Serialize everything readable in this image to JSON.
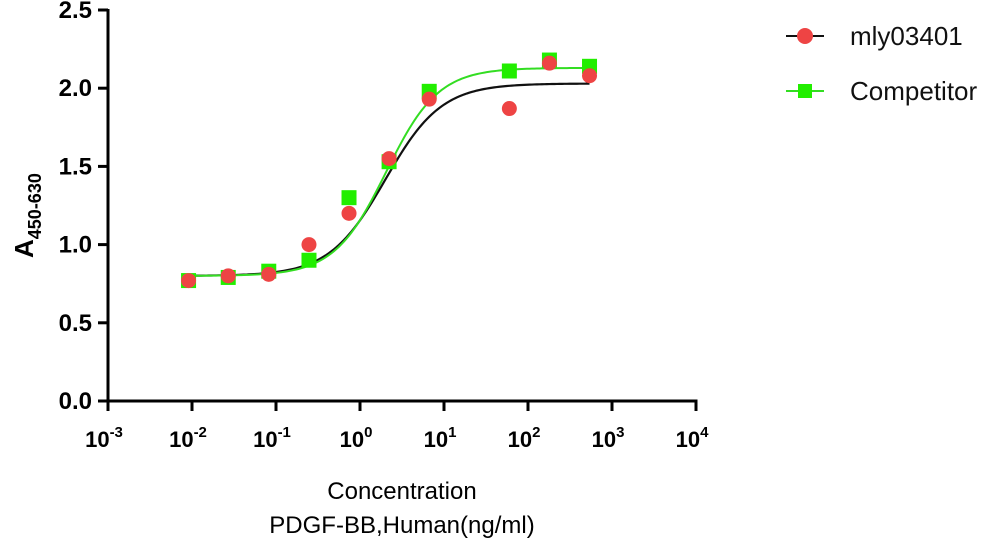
{
  "chart_data": {
    "type": "scatter",
    "title": "",
    "xlabel": "Concentration",
    "xlabel_line2": "PDGF-BB,Human(ng/ml)",
    "ylabel": "A",
    "ylabel_subscript": "450-630",
    "xscale": "log",
    "xlim": [
      0.001,
      10000
    ],
    "ylim": [
      0,
      2.5
    ],
    "grid": false,
    "legend_position": "top-right",
    "x_ticks": [
      {
        "base": "10",
        "exp": "-3",
        "value": 0.001
      },
      {
        "base": "10",
        "exp": "-2",
        "value": 0.01
      },
      {
        "base": "10",
        "exp": "-1",
        "value": 0.1
      },
      {
        "base": "10",
        "exp": "0",
        "value": 1
      },
      {
        "base": "10",
        "exp": "1",
        "value": 10
      },
      {
        "base": "10",
        "exp": "2",
        "value": 100
      },
      {
        "base": "10",
        "exp": "3",
        "value": 1000
      },
      {
        "base": "10",
        "exp": "4",
        "value": 10000
      }
    ],
    "y_ticks": [
      "0.0",
      "0.5",
      "1.0",
      "1.5",
      "2.0",
      "2.5"
    ],
    "series": [
      {
        "name": "mly03401",
        "marker": "circle",
        "color": "#ee4444",
        "line_color": "#111111",
        "x": [
          0.0091,
          0.027,
          0.082,
          0.247,
          0.74,
          2.22,
          6.67,
          60,
          180,
          540
        ],
        "y": [
          0.77,
          0.8,
          0.81,
          1.0,
          1.2,
          1.55,
          1.93,
          1.87,
          2.16,
          2.08
        ],
        "fit": {
          "bottom": 0.8,
          "top": 2.03,
          "ec50": 2.0,
          "hill": 1.3
        }
      },
      {
        "name": "Competitor",
        "marker": "square",
        "color": "#22ee00",
        "line_color": "#33dd22",
        "x": [
          0.0091,
          0.027,
          0.082,
          0.247,
          0.74,
          2.22,
          6.67,
          60,
          180,
          540
        ],
        "y": [
          0.77,
          0.79,
          0.83,
          0.9,
          1.3,
          1.53,
          1.98,
          2.11,
          2.18,
          2.14
        ],
        "fit": {
          "bottom": 0.8,
          "top": 2.13,
          "ec50": 2.05,
          "hill": 1.4
        }
      }
    ]
  }
}
